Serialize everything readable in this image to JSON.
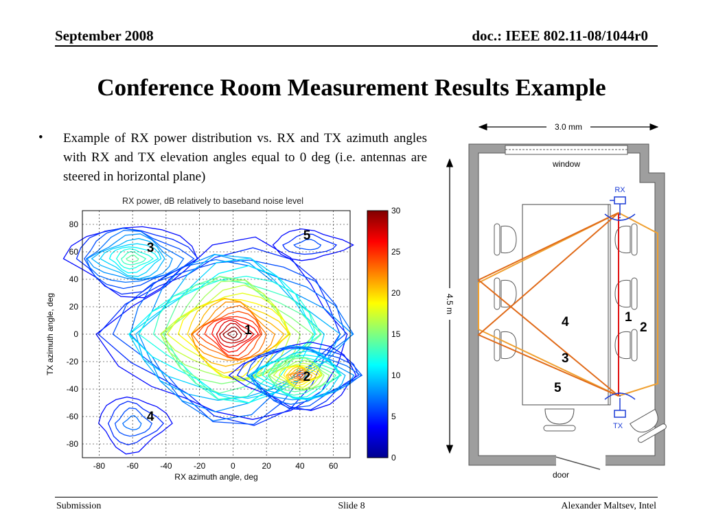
{
  "header": {
    "date": "September 2008",
    "doc": "doc.: IEEE 802.11-08/1044r0"
  },
  "title": "Conference Room Measurement Results Example",
  "bullet": "Example of RX power distribution vs. RX and TX azimuth angles with RX and TX elevation angles equal to 0 deg (i.e. antennas are steered in horizontal plane)",
  "plot": {
    "title": "RX power, dB relatively to baseband noise level",
    "xlabel": "RX azimuth angle, deg",
    "ylabel": "TX azimuth angle, deg",
    "xticks": [
      "-80",
      "-60",
      "-40",
      "-20",
      "0",
      "20",
      "40",
      "60"
    ],
    "yticks": [
      "80",
      "60",
      "40",
      "20",
      "0",
      "-20",
      "-40",
      "-60",
      "-80"
    ],
    "colorbar_ticks": [
      "30",
      "25",
      "20",
      "15",
      "10",
      "5",
      "0"
    ],
    "peaks": [
      {
        "label": "1",
        "x": 0,
        "y": 0
      },
      {
        "label": "2",
        "x": 40,
        "y": -30
      },
      {
        "label": "3",
        "x": -60,
        "y": 55
      },
      {
        "label": "4",
        "x": -60,
        "y": -65
      },
      {
        "label": "5",
        "x": 45,
        "y": 65
      }
    ]
  },
  "room": {
    "width_label": "3.0 mm",
    "length_label": "4.5 m",
    "window_label": "window",
    "door_label": "door",
    "rx_label": "RX",
    "tx_label": "TX",
    "path_labels": [
      "1",
      "2",
      "3",
      "4",
      "5"
    ]
  },
  "footer": {
    "left": "Submission",
    "center": "Slide 8",
    "right": "Alexander Maltsev, Intel"
  }
}
